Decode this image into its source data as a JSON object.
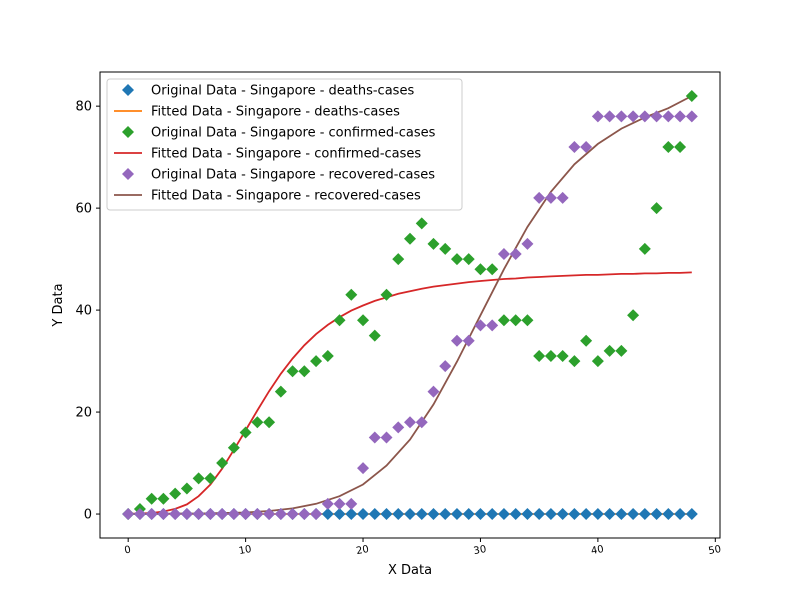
{
  "chart_data": {
    "type": "scatter",
    "xlabel": "X Data",
    "ylabel": "Y Data",
    "xlim": [
      -2.4,
      50.4
    ],
    "ylim": [
      -4.7,
      86.7
    ],
    "x_ticks": [
      0,
      10,
      20,
      30,
      40,
      50
    ],
    "y_ticks": [
      0,
      20,
      40,
      60,
      80
    ],
    "x_tick_labels": [
      "0",
      "10",
      "20",
      "30",
      "40",
      "50"
    ],
    "y_tick_labels": [
      "0",
      "20",
      "40",
      "60",
      "80"
    ],
    "grid": false,
    "legend_position": "top-left",
    "series": [
      {
        "name": "Original Data - Singapore - deaths-cases",
        "kind": "scatter",
        "marker": "diamond",
        "color": "#1f77b4",
        "x": [
          0,
          1,
          2,
          3,
          4,
          5,
          6,
          7,
          8,
          9,
          10,
          11,
          12,
          13,
          14,
          15,
          16,
          17,
          18,
          19,
          20,
          21,
          22,
          23,
          24,
          25,
          26,
          27,
          28,
          29,
          30,
          31,
          32,
          33,
          34,
          35,
          36,
          37,
          38,
          39,
          40,
          41,
          42,
          43,
          44,
          45,
          46,
          47,
          48
        ],
        "y": [
          0,
          0,
          0,
          0,
          0,
          0,
          0,
          0,
          0,
          0,
          0,
          0,
          0,
          0,
          0,
          0,
          0,
          0,
          0,
          0,
          0,
          0,
          0,
          0,
          0,
          0,
          0,
          0,
          0,
          0,
          0,
          0,
          0,
          0,
          0,
          0,
          0,
          0,
          0,
          0,
          0,
          0,
          0,
          0,
          0,
          0,
          0,
          0,
          0
        ]
      },
      {
        "name": "Fitted Data - Singapore - deaths-cases",
        "kind": "line",
        "color": "#ff7f0e",
        "x": [
          0,
          48
        ],
        "y": [
          0,
          0
        ]
      },
      {
        "name": "Original Data - Singapore - confirmed-cases",
        "kind": "scatter",
        "marker": "diamond",
        "color": "#2ca02c",
        "x": [
          0,
          1,
          2,
          3,
          4,
          5,
          6,
          7,
          8,
          9,
          10,
          11,
          12,
          13,
          14,
          15,
          16,
          17,
          18,
          19,
          20,
          21,
          22,
          23,
          24,
          25,
          26,
          27,
          28,
          29,
          30,
          31,
          32,
          33,
          34,
          35,
          36,
          37,
          38,
          39,
          40,
          41,
          42,
          43,
          44,
          45,
          46,
          47,
          48
        ],
        "y": [
          0,
          1,
          3,
          3,
          4,
          5,
          7,
          7,
          10,
          13,
          16,
          18,
          18,
          24,
          28,
          28,
          30,
          31,
          38,
          43,
          38,
          35,
          43,
          50,
          54,
          57,
          53,
          52,
          50,
          50,
          48,
          48,
          38,
          38,
          38,
          31,
          31,
          31,
          30,
          34,
          30,
          32,
          32,
          39,
          52,
          60,
          72,
          72,
          82
        ]
      },
      {
        "name": "Fitted Data - Singapore - confirmed-cases",
        "kind": "line",
        "color": "#d62728",
        "x": [
          0,
          1,
          2,
          3,
          4,
          5,
          6,
          7,
          8,
          9,
          10,
          11,
          12,
          13,
          14,
          15,
          16,
          17,
          18,
          19,
          20,
          21,
          22,
          23,
          24,
          25,
          26,
          27,
          28,
          29,
          30,
          31,
          32,
          33,
          34,
          35,
          36,
          37,
          38,
          39,
          40,
          41,
          42,
          43,
          44,
          45,
          46,
          47,
          48
        ],
        "y": [
          0.05,
          0.1,
          0.2,
          0.5,
          1,
          1.9,
          3.5,
          5.8,
          8.9,
          12.6,
          16.4,
          20.3,
          24.1,
          27.5,
          30.5,
          33.1,
          35.3,
          37.1,
          38.6,
          39.9,
          40.9,
          41.8,
          42.5,
          43.2,
          43.7,
          44.2,
          44.6,
          44.9,
          45.2,
          45.5,
          45.7,
          45.9,
          46.1,
          46.2,
          46.4,
          46.5,
          46.6,
          46.7,
          46.8,
          46.9,
          46.9,
          47.0,
          47.1,
          47.1,
          47.2,
          47.2,
          47.3,
          47.3,
          47.4
        ]
      },
      {
        "name": "Original Data - Singapore - recovered-cases",
        "kind": "scatter",
        "marker": "diamond",
        "color": "#9467bd",
        "x": [
          0,
          1,
          2,
          3,
          4,
          5,
          6,
          7,
          8,
          9,
          10,
          11,
          12,
          13,
          14,
          15,
          16,
          17,
          18,
          19,
          20,
          21,
          22,
          23,
          24,
          25,
          26,
          27,
          28,
          29,
          30,
          31,
          32,
          33,
          34,
          35,
          36,
          37,
          38,
          39,
          40,
          41,
          42,
          43,
          44,
          45,
          46,
          47,
          48
        ],
        "y": [
          0,
          0,
          0,
          0,
          0,
          0,
          0,
          0,
          0,
          0,
          0,
          0,
          0,
          0,
          0,
          0,
          0,
          2,
          2,
          2,
          9,
          15,
          15,
          17,
          18,
          18,
          24,
          29,
          34,
          34,
          37,
          37,
          51,
          51,
          53,
          62,
          62,
          62,
          72,
          72,
          78,
          78,
          78,
          78,
          78,
          78,
          78,
          78,
          78
        ]
      },
      {
        "name": "Fitted Data - Singapore - recovered-cases",
        "kind": "line",
        "color": "#8c564b",
        "x": [
          0,
          2,
          4,
          6,
          8,
          10,
          12,
          14,
          16,
          18,
          20,
          22,
          24,
          26,
          28,
          30,
          32,
          34,
          36,
          38,
          40,
          42,
          44,
          46,
          48
        ],
        "y": [
          0,
          0,
          0.1,
          0.1,
          0.2,
          0.3,
          0.6,
          1.1,
          2.0,
          3.5,
          5.8,
          9.5,
          14.6,
          21.5,
          29.9,
          39.0,
          48.0,
          56.3,
          63.2,
          68.6,
          72.6,
          75.6,
          77.8,
          79.6,
          82.0
        ]
      }
    ]
  }
}
